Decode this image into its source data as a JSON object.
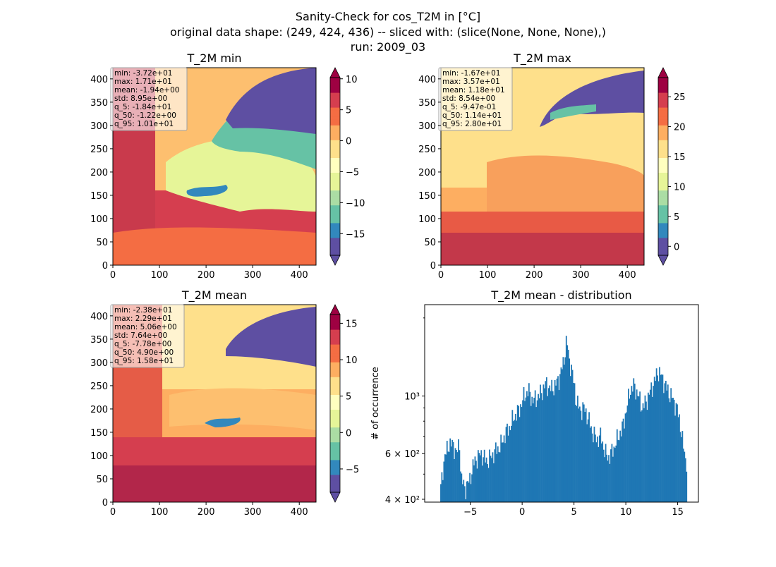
{
  "figure": {
    "title_line1": "Sanity-Check for cos_T2M in [°C]",
    "title_line2": "original data shape: (249, 424, 436) -- sliced with: (slice(None, None, None),)",
    "title_line3": "run: 2009_03"
  },
  "colormap": "Spectral_r",
  "chart_data": [
    {
      "type": "heatmap",
      "title": "T_2M min",
      "x_ticks": [
        "0",
        "100",
        "200",
        "300",
        "400"
      ],
      "y_ticks": [
        "0",
        "50",
        "100",
        "150",
        "200",
        "250",
        "300",
        "350",
        "400"
      ],
      "xlim": [
        0,
        436
      ],
      "ylim": [
        0,
        424
      ],
      "colorbar": {
        "vmin": -18.5,
        "vmax": 10.2,
        "ticks": [
          "−15",
          "−10",
          "−5",
          "0",
          "5",
          "10"
        ],
        "tick_values": [
          -15,
          -10,
          -5,
          0,
          5,
          10
        ],
        "extend": "both"
      },
      "stats": [
        "min: -3.72e+01",
        "max: 1.71e+01",
        "mean: -1.94e+00",
        "std: 8.95e+00",
        "q_5: -1.84e+01",
        "q_50: -1.22e+00",
        "q_95: 1.01e+01"
      ]
    },
    {
      "type": "heatmap",
      "title": "T_2M max",
      "x_ticks": [
        "0",
        "100",
        "200",
        "300",
        "400"
      ],
      "y_ticks": [
        "0",
        "50",
        "100",
        "150",
        "200",
        "250",
        "300",
        "350",
        "400"
      ],
      "xlim": [
        0,
        436
      ],
      "ylim": [
        0,
        424
      ],
      "colorbar": {
        "vmin": -1.5,
        "vmax": 28.2,
        "ticks": [
          "0",
          "5",
          "10",
          "15",
          "20",
          "25"
        ],
        "tick_values": [
          0,
          5,
          10,
          15,
          20,
          25
        ],
        "extend": "both"
      },
      "stats": [
        "min: -1.67e+01",
        "max: 3.57e+01",
        "mean: 1.18e+01",
        "std: 8.54e+00",
        "q_5: -9.47e-01",
        "q_50: 1.14e+01",
        "q_95: 2.80e+01"
      ]
    },
    {
      "type": "heatmap",
      "title": "T_2M mean",
      "x_ticks": [
        "0",
        "100",
        "200",
        "300",
        "400"
      ],
      "y_ticks": [
        "0",
        "50",
        "100",
        "150",
        "200",
        "250",
        "300",
        "350",
        "400"
      ],
      "xlim": [
        0,
        436
      ],
      "ylim": [
        0,
        424
      ],
      "colorbar": {
        "vmin": -8.2,
        "vmax": 16.2,
        "ticks": [
          "−5",
          "0",
          "5",
          "10",
          "15"
        ],
        "tick_values": [
          -5,
          0,
          5,
          10,
          15
        ],
        "extend": "both"
      },
      "stats": [
        "min: -2.38e+01",
        "max: 2.29e+01",
        "mean: 5.06e+00",
        "std: 7.64e+00",
        "q_5: -7.78e+00",
        "q_50: 4.90e+00",
        "q_95: 1.58e+01"
      ]
    },
    {
      "type": "bar",
      "title": "T_2M mean - distribution",
      "ylabel": "# of occurrence",
      "xlabel": "",
      "y_scale": "log",
      "xlim": [
        -9.4,
        17.0
      ],
      "ylim": [
        390,
        2250
      ],
      "x_ticks": [
        "−5",
        "0",
        "5",
        "10",
        "15"
      ],
      "x_tick_values": [
        -5,
        0,
        5,
        10,
        15
      ],
      "y_ticks": [
        "4 × 10²",
        "6 × 10²",
        "10³"
      ],
      "y_tick_values": [
        400,
        600,
        1000
      ],
      "bar_color": "#1f77b4",
      "bin_start": -7.9,
      "bin_width": 0.1,
      "bin_count": 238,
      "anchor_x": [
        -7.9,
        -7.5,
        -7.0,
        -6.6,
        -6.3,
        -6.05,
        -5.9,
        -5.5,
        -5.1,
        -4.6,
        -4.0,
        -3.4,
        -2.9,
        -2.5,
        -2.1,
        -1.6,
        -1.2,
        -0.8,
        -0.3,
        0.2,
        0.6,
        1.0,
        1.4,
        1.9,
        2.3,
        2.7,
        3.2,
        3.6,
        4.0,
        4.3,
        4.5,
        4.8,
        5.2,
        5.6,
        6.0,
        6.4,
        6.8,
        7.2,
        7.6,
        8.0,
        8.4,
        8.9,
        9.3,
        9.7,
        10.1,
        10.4,
        10.8,
        11.2,
        11.6,
        12.0,
        12.4,
        12.8,
        13.1,
        13.4,
        13.8,
        14.2,
        14.5,
        14.9,
        15.2,
        15.5,
        15.8
      ],
      "anchor_y": [
        420,
        580,
        660,
        640,
        600,
        660,
        480,
        440,
        470,
        560,
        600,
        560,
        590,
        620,
        640,
        720,
        760,
        830,
        880,
        1000,
        1050,
        960,
        980,
        1040,
        1120,
        1060,
        1100,
        1180,
        1350,
        1650,
        1400,
        1250,
        960,
        880,
        900,
        810,
        720,
        680,
        700,
        600,
        580,
        640,
        700,
        760,
        900,
        1050,
        1100,
        1000,
        900,
        960,
        1050,
        1150,
        1250,
        1200,
        1100,
        1020,
        980,
        900,
        800,
        650,
        560
      ]
    }
  ]
}
